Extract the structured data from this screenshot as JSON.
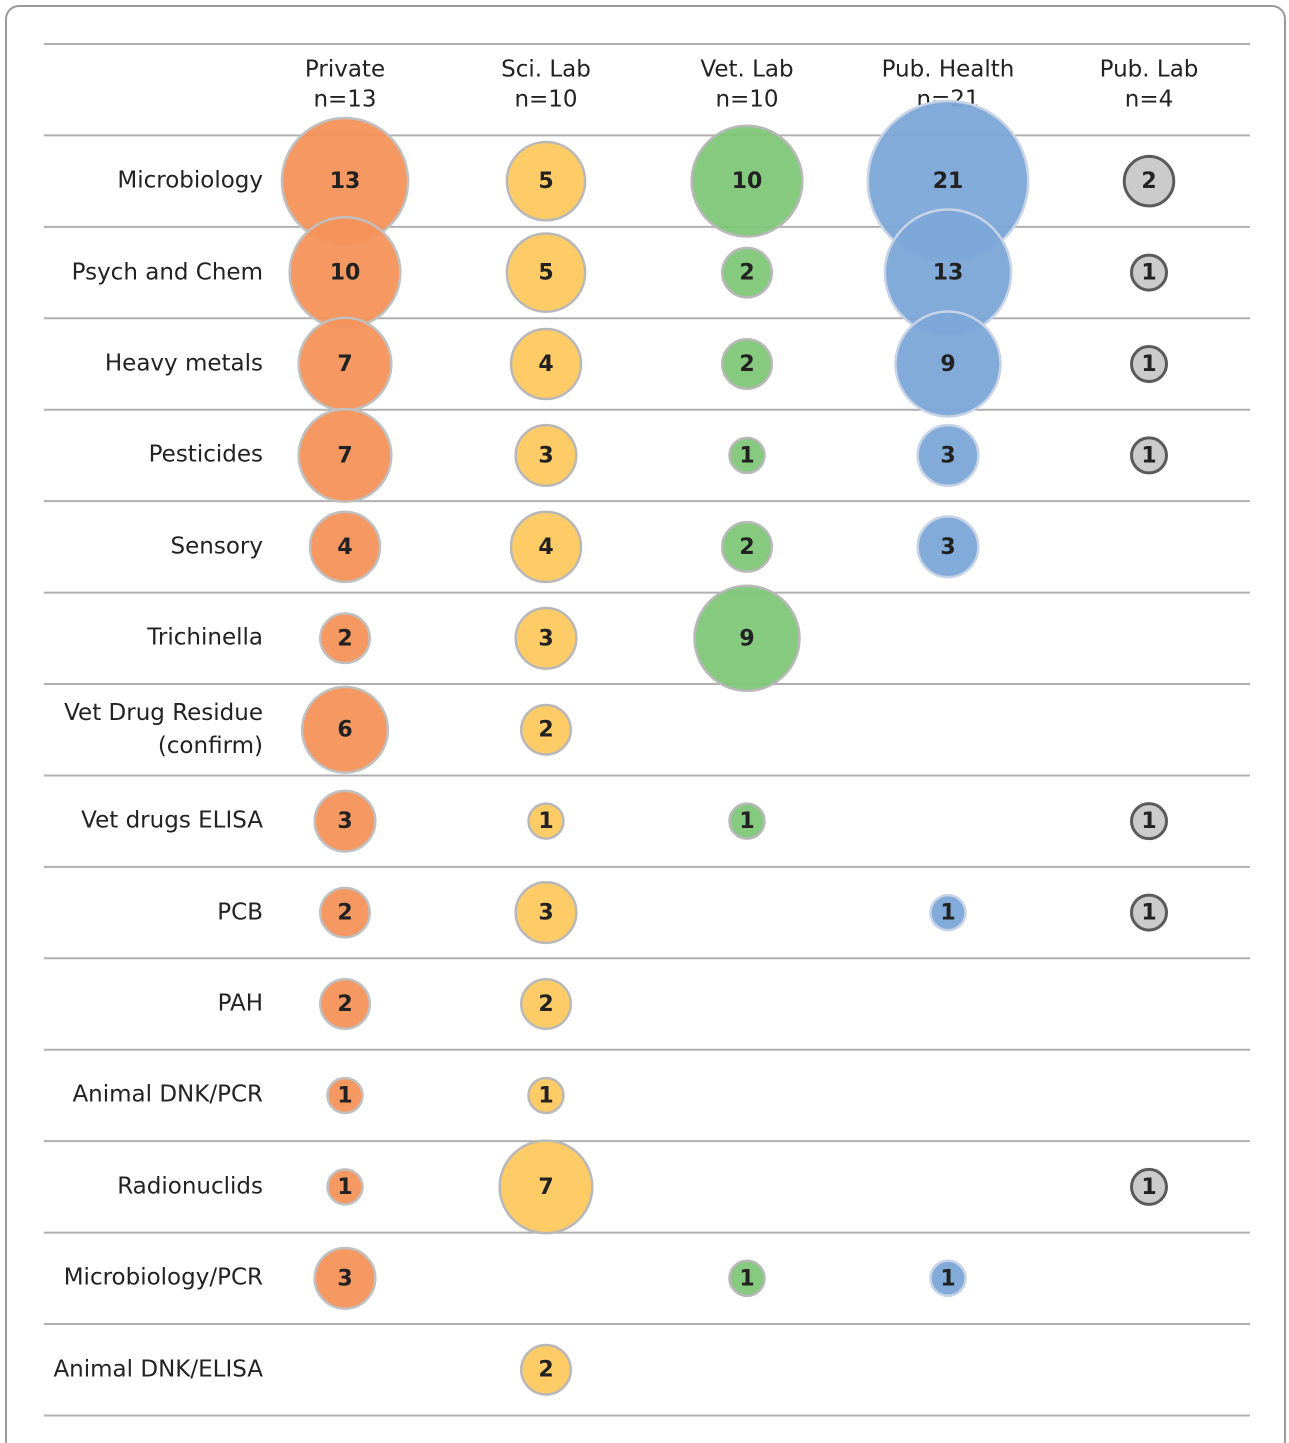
{
  "chart_data": {
    "type": "bubble_matrix",
    "categories": [
      "Microbiology",
      "Psych and Chem",
      "Heavy metals",
      "Pesticides",
      "Sensory",
      "Trichinella",
      "Vet Drug Residue (confirm)",
      "Vet drugs ELISA",
      "PCB",
      "PAH",
      "Animal DNK/PCR",
      "Radionuclids",
      "Microbiology/PCR",
      "Animal DNK/ELISA"
    ],
    "series": [
      {
        "name": "Private",
        "subtitle": "n=13",
        "color": "#f4925a",
        "stroke": "#c0c0c0",
        "values": [
          13,
          10,
          7,
          7,
          4,
          2,
          6,
          3,
          2,
          2,
          1,
          1,
          3,
          null
        ]
      },
      {
        "name": "Sci. Lab",
        "subtitle": "n=10",
        "color": "#fec95e",
        "stroke": "#b8b8b8",
        "values": [
          5,
          5,
          4,
          3,
          4,
          3,
          2,
          1,
          3,
          2,
          1,
          7,
          null,
          2
        ]
      },
      {
        "name": "Vet. Lab",
        "subtitle": "n=10",
        "color": "#7ec778",
        "stroke": "#b8b8b8",
        "values": [
          10,
          2,
          2,
          1,
          2,
          9,
          null,
          1,
          null,
          null,
          null,
          null,
          1,
          null
        ]
      },
      {
        "name": "Pub. Health",
        "subtitle": "n=21",
        "color": "#7ba7d8",
        "stroke": "#c6d3e6",
        "values": [
          21,
          13,
          9,
          3,
          3,
          null,
          null,
          null,
          1,
          null,
          null,
          null,
          1,
          null
        ]
      },
      {
        "name": "Pub. Lab",
        "subtitle": "n=4",
        "color": "#c8c8c8",
        "stroke": "#5a5a5a",
        "values": [
          2,
          1,
          1,
          1,
          null,
          null,
          null,
          1,
          1,
          null,
          null,
          1,
          null,
          null
        ]
      }
    ]
  }
}
